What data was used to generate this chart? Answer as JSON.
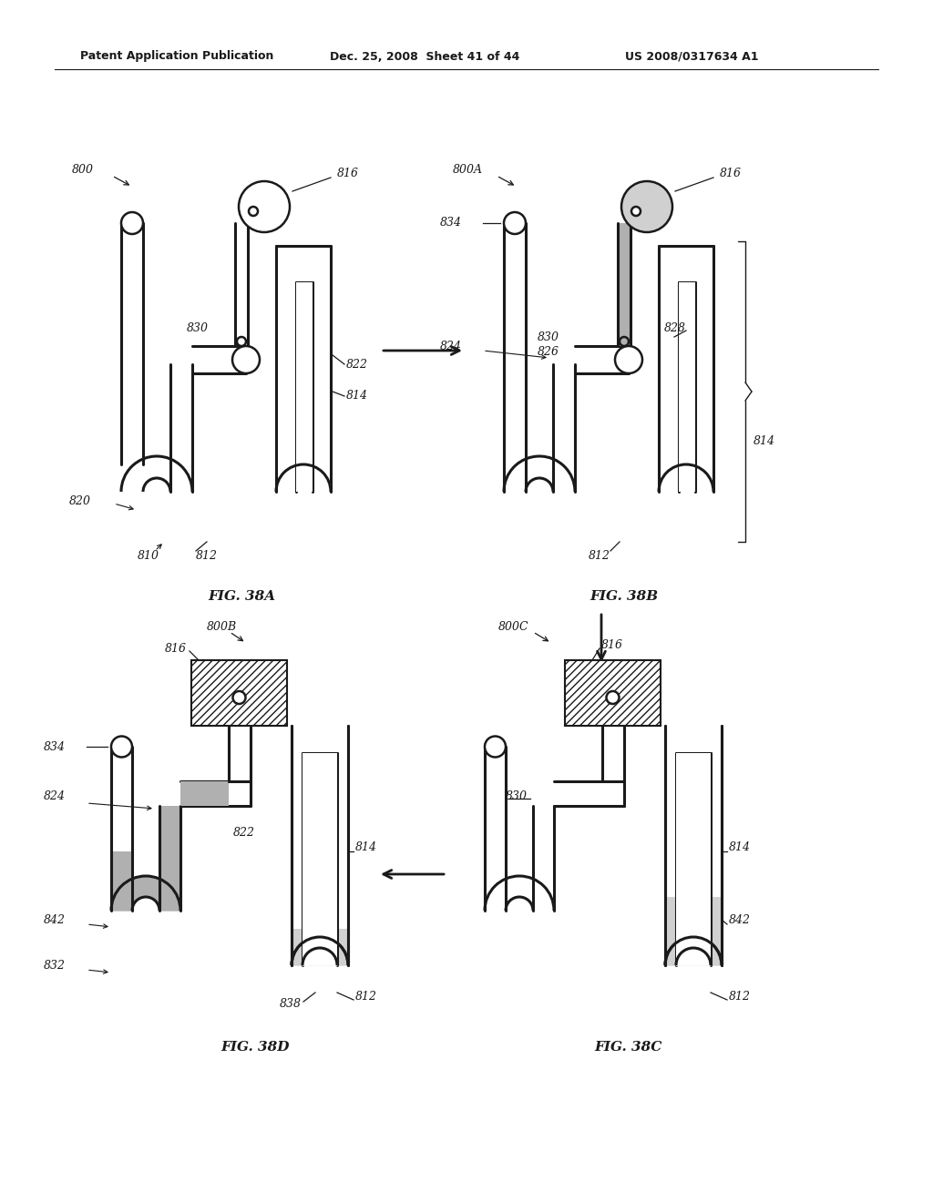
{
  "header_left": "Patent Application Publication",
  "header_mid": "Dec. 25, 2008  Sheet 41 of 44",
  "header_right": "US 2008/0317634 A1",
  "background": "#ffffff",
  "line_color": "#1a1a1a",
  "gray_fill": "#b0b0b0",
  "light_gray": "#d0d0d0",
  "tube_lw": 2.2,
  "fig_width": 1024,
  "fig_height": 1320
}
